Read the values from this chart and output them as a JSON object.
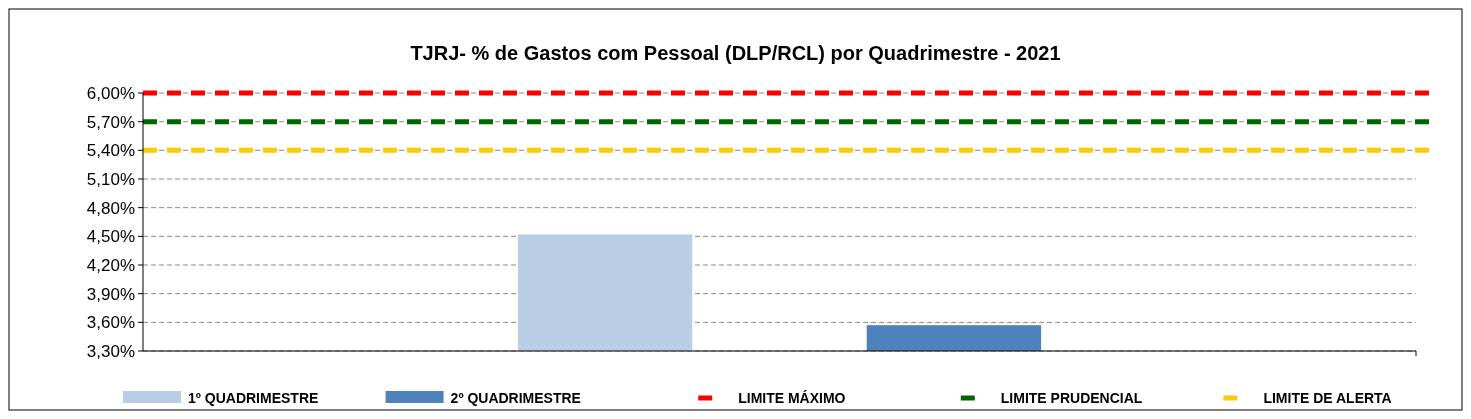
{
  "chart_data": {
    "type": "bar",
    "title": "TJRJ- % de Gastos com Pessoal (DLP/RCL) por Quadrimestre  - 2021",
    "categories": [
      null
    ],
    "series": [
      {
        "name": "1º QUADRIMESTRE",
        "color": "#b9cde5",
        "values": [
          4.52
        ]
      },
      {
        "name": "2º QUADRIMESTRE",
        "color": "#4f81bd",
        "values": [
          3.57
        ]
      }
    ],
    "ylim": [
      3.3,
      6.0
    ],
    "yticks": [
      {
        "value": 3.3,
        "label": "3,30%"
      },
      {
        "value": 3.6,
        "label": "3,60%"
      },
      {
        "value": 3.9,
        "label": "3,90%"
      },
      {
        "value": 4.2,
        "label": "4,20%"
      },
      {
        "value": 4.5,
        "label": "4,50%"
      },
      {
        "value": 4.8,
        "label": "4,80%"
      },
      {
        "value": 5.1,
        "label": "5,10%"
      },
      {
        "value": 5.4,
        "label": "5,40%"
      },
      {
        "value": 5.7,
        "label": "5,70%"
      },
      {
        "value": 6.0,
        "label": "6,00%"
      }
    ],
    "ref_lines": [
      {
        "axis": "y",
        "value": 6.0,
        "label": "LIMITE MÁXIMO",
        "color": "#ff0000",
        "line_style": "dashed"
      },
      {
        "axis": "y",
        "value": 5.7,
        "label": "LIMITE PRUDENCIAL",
        "color": "#006600",
        "line_style": "dashed"
      },
      {
        "axis": "y",
        "value": 5.4,
        "label": "LIMITE DE ALERTA",
        "color": "#ffcc00",
        "line_style": "dashed"
      }
    ],
    "grid": "y",
    "legend": "bottom"
  }
}
